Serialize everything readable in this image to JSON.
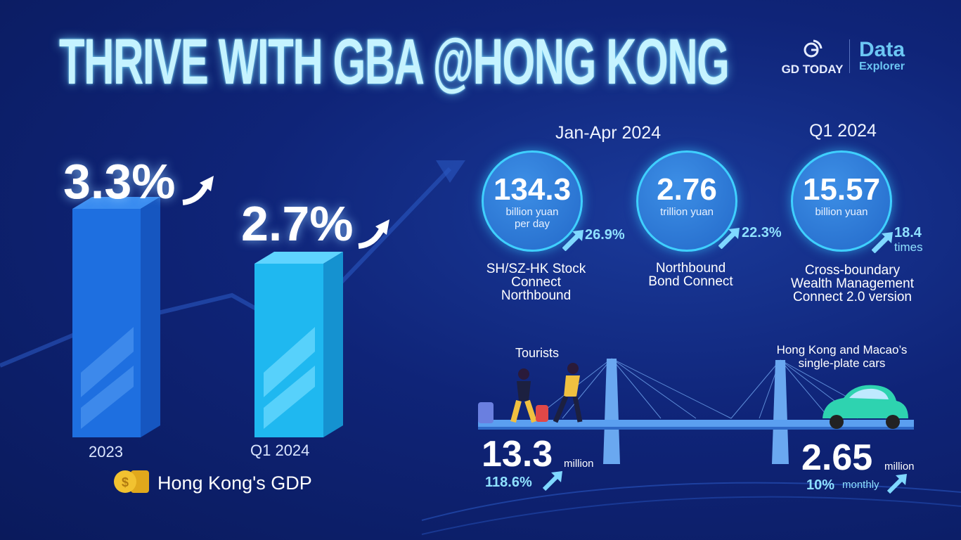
{
  "title": "THRIVE WITH GBA @HONG KONG",
  "logos": {
    "gd": "GD TODAY",
    "data": "Data",
    "explorer": "Explorer"
  },
  "gdp": {
    "label": "Hong Kong's GDP",
    "bars": [
      {
        "year": "2023",
        "value_label": "3.3%",
        "value": 3.3
      },
      {
        "year": "Q1 2024",
        "value_label": "2.7%",
        "value": 2.7
      }
    ]
  },
  "connect": {
    "period1": "Jan-Apr 2024",
    "period2": "Q1 2024",
    "items": [
      {
        "value": "134.3",
        "unit1": "billion yuan",
        "unit2": "per day",
        "growth": "26.9%",
        "caption": [
          "SH/SZ-HK Stock",
          "Connect",
          "Northbound"
        ]
      },
      {
        "value": "2.76",
        "unit1": "trillion yuan",
        "growth": "22.3%",
        "caption": [
          "Northbound",
          "Bond Connect"
        ]
      },
      {
        "value": "15.57",
        "unit1": "billion yuan",
        "growth": "18.4",
        "growth_unit": "times",
        "caption": [
          "Cross-boundary",
          "Wealth Management",
          "Connect 2.0 version"
        ]
      }
    ]
  },
  "tourists": {
    "label": "Tourists",
    "value": "13.3",
    "unit": "million",
    "growth": "118.6%"
  },
  "cars": {
    "label": [
      "Hong Kong and Macao’s",
      "single-plate cars"
    ],
    "value": "2.65",
    "unit": "million",
    "growth": "10%",
    "growth_unit": "monthly"
  },
  "colors": {
    "accent": "#3fd0ff",
    "title": "#c5f3ff",
    "bar2023": "#1e6fe0",
    "barQ1": "#1fb8f0"
  }
}
